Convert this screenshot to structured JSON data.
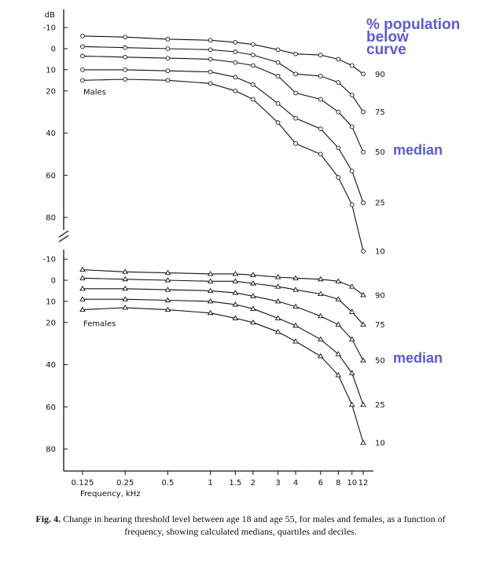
{
  "chart_data": {
    "type": "line",
    "ylabel": "dB",
    "xlabel": "Frequency, kHz",
    "x": [
      0.125,
      0.25,
      0.5,
      1,
      1.5,
      2,
      3,
      4,
      6,
      8,
      10,
      12
    ],
    "x_tick_labels": [
      "0.125",
      "0.25",
      "0.5",
      "1",
      "1.5",
      "2",
      "3",
      "4",
      "6",
      "8",
      "10",
      "12"
    ],
    "x_scale": "log",
    "y_ticks": [
      -10,
      0,
      10,
      20,
      40,
      60,
      80
    ],
    "y_tick_labels": [
      "-10",
      "0",
      "10",
      "20",
      "40",
      "60",
      "80"
    ],
    "y_direction": "down",
    "percentile_labels": [
      "90",
      "75",
      "50",
      "25",
      "10"
    ],
    "panels": [
      {
        "name": "Males",
        "marker": "circle",
        "ylim": [
          -12,
          87
        ],
        "series": [
          {
            "name": "90",
            "values": [
              -6,
              -5.5,
              -4.5,
              -4,
              -3,
              -2,
              0.5,
              2.5,
              3,
              5,
              8,
              12
            ]
          },
          {
            "name": "75",
            "values": [
              -1,
              -0.5,
              0,
              0.5,
              1.5,
              3,
              6.5,
              12,
              13,
              16,
              22,
              30
            ]
          },
          {
            "name": "50",
            "values": [
              3.5,
              4,
              4.5,
              5,
              6.5,
              8,
              13,
              21,
              24,
              30,
              37,
              49
            ]
          },
          {
            "name": "25",
            "values": [
              10,
              10,
              10.5,
              11,
              13.5,
              17,
              26,
              33,
              38,
              47,
              58,
              73
            ]
          },
          {
            "name": "10",
            "values": [
              15,
              14.5,
              15,
              16.5,
              20,
              24,
              35,
              45,
              50,
              61,
              74,
              96
            ]
          }
        ]
      },
      {
        "name": "Females",
        "marker": "triangle",
        "ylim": [
          -12,
          87
        ],
        "series": [
          {
            "name": "90",
            "values": [
              -5,
              -4,
              -3.5,
              -3,
              -3,
              -2.5,
              -1.5,
              -1,
              -0.5,
              0.5,
              3,
              7
            ]
          },
          {
            "name": "75",
            "values": [
              -1,
              -0.5,
              0,
              0.5,
              0.5,
              1.5,
              3,
              4.5,
              6.5,
              9,
              15,
              21
            ]
          },
          {
            "name": "50",
            "values": [
              4,
              4,
              4.5,
              5,
              6,
              7.5,
              10,
              12.5,
              17,
              21,
              28,
              38
            ]
          },
          {
            "name": "25",
            "values": [
              9,
              9,
              9.5,
              10,
              11.5,
              13.5,
              18,
              21.5,
              28,
              35,
              44,
              59
            ]
          },
          {
            "name": "10",
            "values": [
              14,
              13,
              14,
              15.5,
              18,
              20,
              24.5,
              29,
              36,
              45,
              59,
              77
            ]
          }
        ]
      }
    ],
    "annotations": {
      "population_note": "% population below curve",
      "median": "median"
    }
  },
  "caption": {
    "label": "Fig. 4.",
    "text": "Change in hearing threshold level between age 18 and age 55, for males and females, as a function of frequency, showing calculated medians, quartiles and deciles."
  },
  "colors": {
    "ink": "#111111",
    "annotation": "#5b5bd6"
  }
}
